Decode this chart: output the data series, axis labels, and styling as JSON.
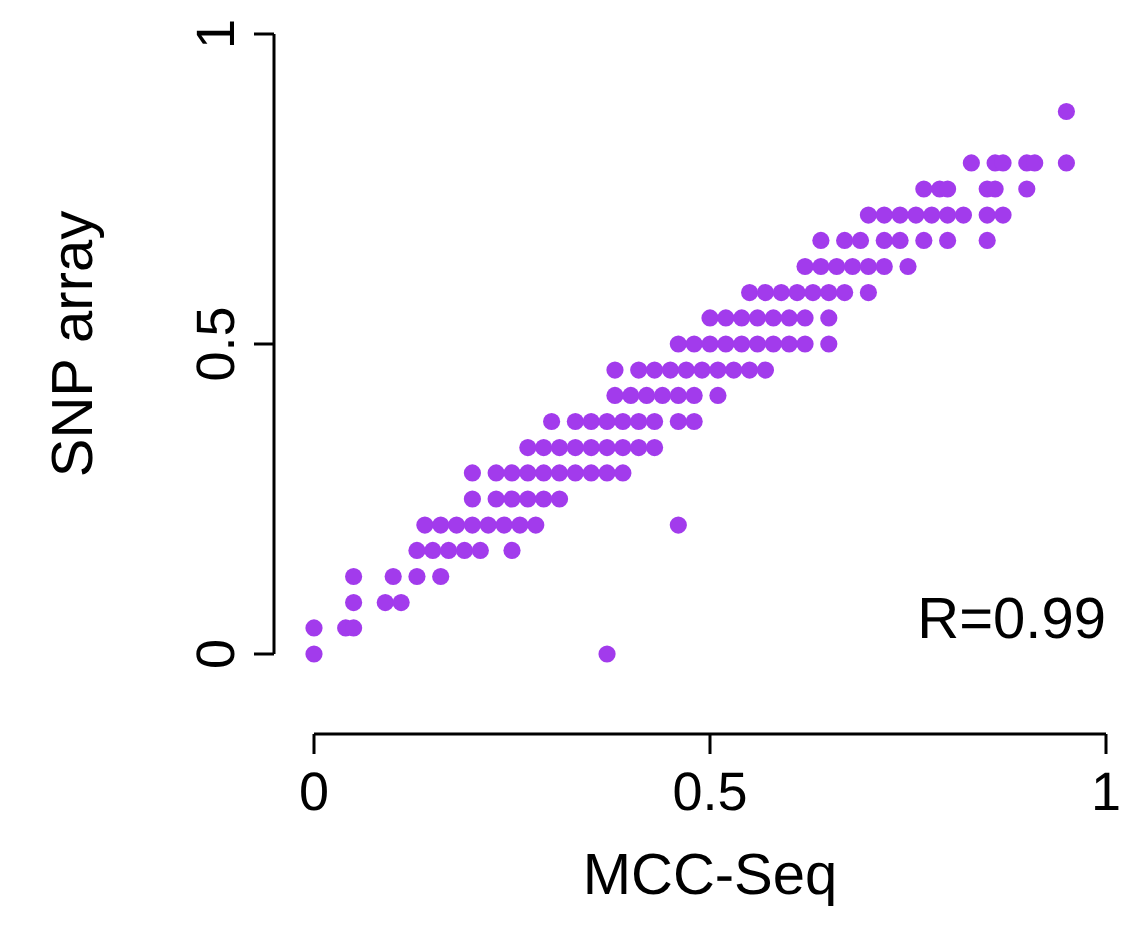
{
  "chart_data": {
    "type": "scatter",
    "xlabel": "MCC-Seq",
    "ylabel": "SNP array",
    "annotations": [
      "R=0.99"
    ],
    "xlim": [
      0,
      1
    ],
    "ylim": [
      0,
      1
    ],
    "xticks": [
      0,
      0.5,
      1
    ],
    "yticks": [
      0,
      0.5,
      1
    ],
    "marker": "circle",
    "series": [
      {
        "color": "#a23bec",
        "x": [
          0.0,
          0.37,
          0.0,
          0.04,
          0.05,
          0.05,
          0.09,
          0.11,
          0.05,
          0.1,
          0.13,
          0.16,
          0.13,
          0.15,
          0.17,
          0.19,
          0.21,
          0.25,
          0.14,
          0.16,
          0.18,
          0.2,
          0.22,
          0.24,
          0.26,
          0.28,
          0.46,
          0.2,
          0.23,
          0.25,
          0.27,
          0.29,
          0.31,
          0.2,
          0.23,
          0.25,
          0.27,
          0.29,
          0.31,
          0.33,
          0.35,
          0.37,
          0.39,
          0.27,
          0.29,
          0.31,
          0.33,
          0.35,
          0.37,
          0.39,
          0.41,
          0.43,
          0.3,
          0.33,
          0.35,
          0.37,
          0.39,
          0.41,
          0.43,
          0.46,
          0.48,
          0.38,
          0.4,
          0.42,
          0.44,
          0.46,
          0.48,
          0.51,
          0.38,
          0.41,
          0.43,
          0.45,
          0.47,
          0.49,
          0.51,
          0.53,
          0.55,
          0.57,
          0.46,
          0.48,
          0.5,
          0.52,
          0.54,
          0.56,
          0.58,
          0.6,
          0.62,
          0.65,
          0.5,
          0.52,
          0.54,
          0.56,
          0.58,
          0.6,
          0.62,
          0.65,
          0.55,
          0.57,
          0.59,
          0.61,
          0.63,
          0.65,
          0.67,
          0.7,
          0.62,
          0.64,
          0.66,
          0.68,
          0.7,
          0.72,
          0.75,
          0.64,
          0.67,
          0.69,
          0.72,
          0.74,
          0.77,
          0.8,
          0.85,
          0.7,
          0.72,
          0.74,
          0.76,
          0.78,
          0.8,
          0.82,
          0.85,
          0.87,
          0.77,
          0.79,
          0.8,
          0.85,
          0.86,
          0.9,
          0.83,
          0.86,
          0.87,
          0.9,
          0.91,
          0.95,
          0.95
        ],
        "values": [
          0,
          0,
          0.042,
          0.042,
          0.042,
          0.083,
          0.083,
          0.083,
          0.125,
          0.125,
          0.125,
          0.125,
          0.167,
          0.167,
          0.167,
          0.167,
          0.167,
          0.167,
          0.208,
          0.208,
          0.208,
          0.208,
          0.208,
          0.208,
          0.208,
          0.208,
          0.208,
          0.25,
          0.25,
          0.25,
          0.25,
          0.25,
          0.25,
          0.292,
          0.292,
          0.292,
          0.292,
          0.292,
          0.292,
          0.292,
          0.292,
          0.292,
          0.292,
          0.333,
          0.333,
          0.333,
          0.333,
          0.333,
          0.333,
          0.333,
          0.333,
          0.333,
          0.375,
          0.375,
          0.375,
          0.375,
          0.375,
          0.375,
          0.375,
          0.375,
          0.375,
          0.417,
          0.417,
          0.417,
          0.417,
          0.417,
          0.417,
          0.417,
          0.458,
          0.458,
          0.458,
          0.458,
          0.458,
          0.458,
          0.458,
          0.458,
          0.458,
          0.458,
          0.5,
          0.5,
          0.5,
          0.5,
          0.5,
          0.5,
          0.5,
          0.5,
          0.5,
          0.5,
          0.542,
          0.542,
          0.542,
          0.542,
          0.542,
          0.542,
          0.542,
          0.542,
          0.583,
          0.583,
          0.583,
          0.583,
          0.583,
          0.583,
          0.583,
          0.583,
          0.625,
          0.625,
          0.625,
          0.625,
          0.625,
          0.625,
          0.625,
          0.667,
          0.667,
          0.667,
          0.667,
          0.667,
          0.667,
          0.667,
          0.667,
          0.708,
          0.708,
          0.708,
          0.708,
          0.708,
          0.708,
          0.708,
          0.708,
          0.708,
          0.75,
          0.75,
          0.75,
          0.75,
          0.75,
          0.75,
          0.792,
          0.792,
          0.792,
          0.792,
          0.792,
          0.792,
          0.875
        ]
      }
    ]
  }
}
